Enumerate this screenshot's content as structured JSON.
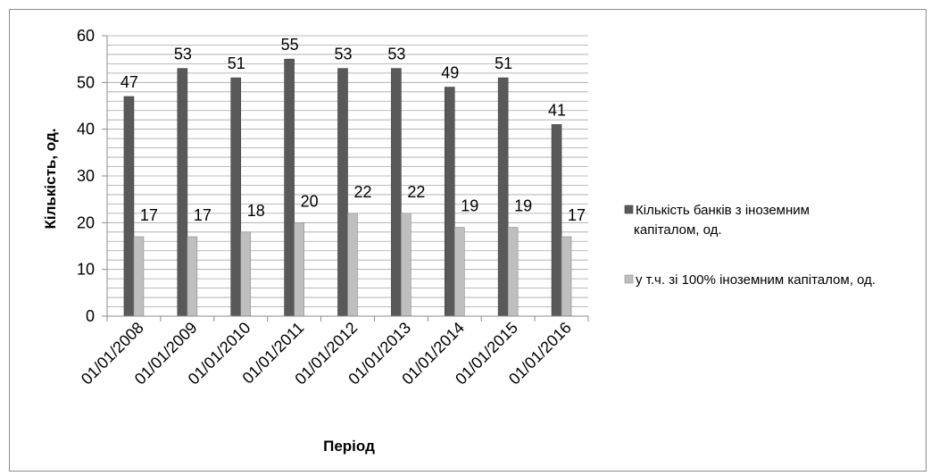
{
  "chart_data": {
    "type": "bar",
    "title": "",
    "xlabel": "Період",
    "ylabel": "Кількість, од.",
    "ylim": [
      0,
      60
    ],
    "yticks": [
      0,
      10,
      20,
      30,
      40,
      50,
      60
    ],
    "minor_grid_step": 2,
    "grid": true,
    "legend_position": "right",
    "categories": [
      "01/01/2008",
      "01/01/2009",
      "01/01/2010",
      "01/01/2011",
      "01/01/2012",
      "01/01/2013",
      "01/01/2014",
      "01/01/2015",
      "01/01/2016"
    ],
    "series": [
      {
        "name": "Кількість банків з іноземним капіталом, од.",
        "legend_lines": [
          "Кількість банків з іноземним",
          "капіталом, од."
        ],
        "color": "#595959",
        "values": [
          47,
          53,
          51,
          55,
          53,
          53,
          49,
          51,
          41
        ]
      },
      {
        "name": "у т.ч. зі 100% іноземним капіталом, од.",
        "legend_lines": [
          "у т.ч. зі 100% іноземним капіталом, од."
        ],
        "color": "#bfbfbf",
        "values": [
          17,
          17,
          18,
          20,
          22,
          22,
          19,
          19,
          17
        ]
      }
    ]
  }
}
